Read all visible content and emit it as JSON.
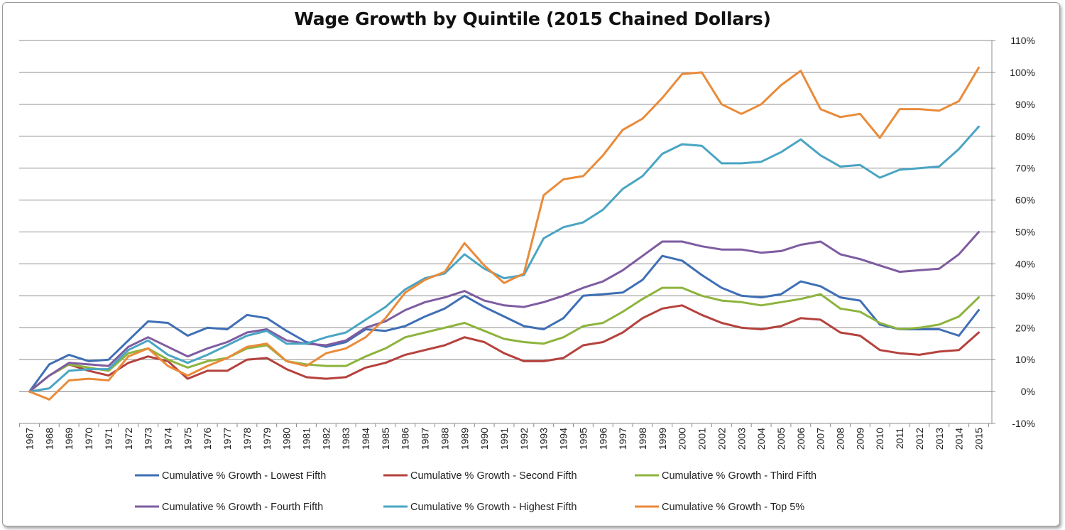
{
  "chart_data": {
    "type": "line",
    "title": "Wage Growth by Quintile (2015 Chained Dollars)",
    "xlabel": "",
    "ylabel": "",
    "ylim": [
      -10,
      110
    ],
    "y_ticks": [
      110,
      100,
      90,
      80,
      70,
      60,
      50,
      40,
      30,
      20,
      10,
      0,
      -10
    ],
    "y_tick_labels": [
      "110%",
      "100%",
      "90%",
      "80%",
      "70%",
      "60%",
      "50%",
      "40%",
      "30%",
      "20%",
      "10%",
      "0%",
      "-10%"
    ],
    "y_axis_position": "right",
    "grid": true,
    "legend_position": "bottom",
    "categories": [
      "1967",
      "1968",
      "1969",
      "1970",
      "1971",
      "1972",
      "1973",
      "1974",
      "1975",
      "1976",
      "1977",
      "1978",
      "1979",
      "1980",
      "1981",
      "1982",
      "1983",
      "1984",
      "1985",
      "1986",
      "1987",
      "1988",
      "1989",
      "1990",
      "1991",
      "1992",
      "1993",
      "1994",
      "1995",
      "1996",
      "1997",
      "1998",
      "1999",
      "2000",
      "2001",
      "2002",
      "2003",
      "2004",
      "2005",
      "2006",
      "2007",
      "2008",
      "2009",
      "2010",
      "2011",
      "2012",
      "2013",
      "2014",
      "2015"
    ],
    "series": [
      {
        "name": "Cumulative % Growth - Lowest Fifth",
        "color": "#3f6fb5",
        "values": [
          0,
          8.5,
          11.5,
          9.5,
          10,
          16,
          22,
          21.5,
          17.5,
          20,
          19.5,
          24,
          23,
          19,
          15.5,
          14,
          15.5,
          19.5,
          19,
          20.5,
          23.5,
          26,
          30,
          26.5,
          23.5,
          20.5,
          19.5,
          23,
          30,
          30.5,
          31,
          35,
          42.5,
          41,
          36.5,
          32.5,
          30,
          29.5,
          30.5,
          34.5,
          33,
          29.5,
          28.5,
          21,
          19.5,
          19.5,
          19.5,
          17.5,
          25.5
        ]
      },
      {
        "name": "Cumulative % Growth - Second Fifth",
        "color": "#b5413d",
        "values": [
          0,
          5,
          8.5,
          6.5,
          5,
          9,
          11,
          9.5,
          4,
          6.5,
          6.5,
          10,
          10.5,
          7,
          4.5,
          4,
          4.5,
          7.5,
          9,
          11.5,
          13,
          14.5,
          17,
          15.5,
          12,
          9.5,
          9.5,
          10.5,
          14.5,
          15.5,
          18.5,
          23,
          26,
          27,
          24,
          21.5,
          20,
          19.5,
          20.5,
          23,
          22.5,
          18.5,
          17.5,
          13,
          12,
          11.5,
          12.5,
          13,
          18.5
        ]
      },
      {
        "name": "Cumulative % Growth - Third Fifth",
        "color": "#8db43e",
        "values": [
          0,
          5,
          8.5,
          7.5,
          6.5,
          12,
          13.5,
          10,
          7.5,
          9.5,
          10.5,
          13.5,
          14.5,
          9.5,
          8.5,
          8,
          8,
          11,
          13.5,
          17,
          18.5,
          20,
          21.5,
          19,
          16.5,
          15.5,
          15,
          17,
          20.5,
          21.5,
          25,
          29,
          32.5,
          32.5,
          30,
          28.5,
          28,
          27,
          28,
          29,
          30.5,
          26,
          25,
          21.5,
          19.5,
          20,
          21,
          23.5,
          29.5
        ]
      },
      {
        "name": "Cumulative % Growth - Fourth Fifth",
        "color": "#7e5ca1",
        "values": [
          0,
          5,
          9,
          8.5,
          8,
          14,
          17,
          14,
          11,
          13.5,
          15.5,
          18.5,
          19.5,
          16,
          15,
          14.5,
          16,
          20,
          22,
          25.5,
          28,
          29.5,
          31.5,
          28.5,
          27,
          26.5,
          28,
          30,
          32.5,
          34.5,
          38,
          42.5,
          47,
          47,
          45.5,
          44.5,
          44.5,
          43.5,
          44,
          46,
          47,
          43,
          41.5,
          39.5,
          37.5,
          38,
          38.5,
          43,
          50
        ]
      },
      {
        "name": "Cumulative % Growth - Highest Fifth",
        "color": "#4aa5c3",
        "values": [
          0,
          1,
          6.5,
          7,
          7,
          13,
          16,
          11.5,
          9,
          11.5,
          14.5,
          17.5,
          19,
          15,
          15,
          17,
          18.5,
          22.5,
          26.5,
          32,
          35.5,
          37,
          43,
          38.5,
          35.5,
          36.5,
          48,
          51.5,
          53,
          57,
          63.5,
          67.5,
          74.5,
          77.5,
          77,
          71.5,
          71.5,
          72,
          75,
          79,
          74,
          70.5,
          71,
          67,
          69.5,
          70,
          70.5,
          76,
          83
        ]
      },
      {
        "name": "Cumulative % Growth - Top 5%",
        "color": "#e98b3a",
        "values": [
          0,
          -2.5,
          3.5,
          4,
          3.5,
          11,
          13.5,
          8,
          5,
          8,
          10.5,
          14,
          15,
          9.5,
          8,
          12,
          13.5,
          17,
          23,
          31,
          35,
          37.5,
          46.5,
          39.5,
          34,
          37,
          61.5,
          66.5,
          67.5,
          74,
          82,
          85.5,
          92,
          99.5,
          100,
          90,
          87,
          90,
          96,
          100.5,
          88.5,
          86,
          87,
          79.5,
          88.5,
          88.5,
          88,
          91,
          101.5
        ]
      }
    ]
  }
}
